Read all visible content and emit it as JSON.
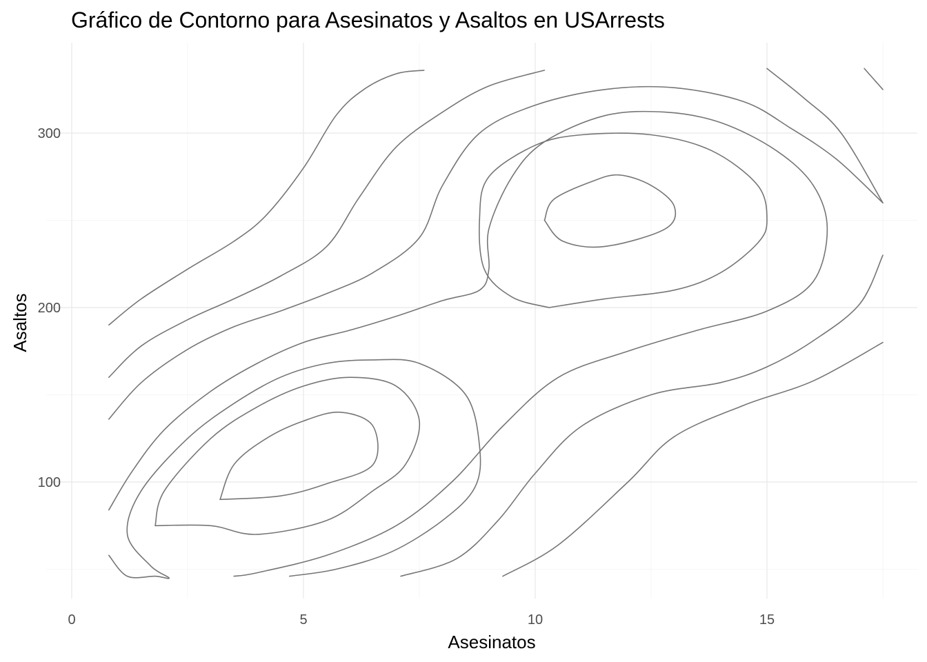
{
  "chart_data": {
    "type": "contour",
    "title": "Gráfico de Contorno para Asesinatos y Asaltos en USArrests",
    "xlabel": "Asesinatos",
    "ylabel": "Asaltos",
    "xlim": [
      0,
      18
    ],
    "ylim": [
      36,
      340
    ],
    "x_ticks": [
      0,
      5,
      10,
      15
    ],
    "x_tick_labels": [
      "0",
      "5",
      "10",
      "15"
    ],
    "y_ticks": [
      100,
      200,
      300
    ],
    "y_tick_labels": [
      "100",
      "200",
      "300"
    ],
    "x_minor": [
      2.5,
      7.5,
      12.5,
      17.5
    ],
    "y_minor": [
      50,
      150,
      250
    ],
    "grid": true,
    "legend": "none",
    "line_color": "#757575",
    "series": [
      {
        "level": 1,
        "points": [
          [
            0.8,
            190
          ],
          [
            1.5,
            205
          ],
          [
            2.5,
            222
          ],
          [
            3.5,
            238
          ],
          [
            4.2,
            253
          ],
          [
            5,
            280
          ],
          [
            5.7,
            310
          ],
          [
            6.3,
            325
          ],
          [
            7,
            334
          ],
          [
            7.6,
            336
          ]
        ]
      },
      {
        "level": 2,
        "points": [
          [
            0.8,
            160
          ],
          [
            1.5,
            178
          ],
          [
            2.5,
            193
          ],
          [
            3.5,
            205
          ],
          [
            4.5,
            218
          ],
          [
            5.5,
            235
          ],
          [
            6.2,
            263
          ],
          [
            7,
            292
          ],
          [
            8,
            312
          ],
          [
            9,
            327
          ],
          [
            10.2,
            336
          ]
        ]
      },
      {
        "level": 3,
        "points": [
          [
            0.8,
            136
          ],
          [
            1.5,
            157
          ],
          [
            2.5,
            176
          ],
          [
            3.5,
            189
          ],
          [
            4.5,
            198
          ],
          [
            5.5,
            208
          ],
          [
            6.5,
            220
          ],
          [
            7.5,
            240
          ],
          [
            8,
            270
          ],
          [
            8.8,
            300
          ],
          [
            10,
            316
          ],
          [
            11.5,
            325
          ],
          [
            13,
            326
          ],
          [
            14.5,
            318
          ],
          [
            15.5,
            303
          ],
          [
            16.5,
            285
          ],
          [
            17.5,
            260
          ]
        ]
      },
      {
        "level": 4,
        "points": [
          [
            0.8,
            84
          ],
          [
            1.3,
            106
          ],
          [
            2,
            130
          ],
          [
            3,
            152
          ],
          [
            4,
            168
          ],
          [
            5,
            180
          ],
          [
            6,
            187
          ],
          [
            7,
            195
          ],
          [
            8,
            204
          ],
          [
            8.8,
            210
          ],
          [
            9,
            222
          ],
          [
            9,
            245
          ],
          [
            9.5,
            275
          ],
          [
            10.2,
            295
          ],
          [
            11.5,
            310
          ],
          [
            12.8,
            312
          ],
          [
            14,
            306
          ],
          [
            15.2,
            290
          ],
          [
            16,
            270
          ],
          [
            16.3,
            245
          ],
          [
            16,
            215
          ],
          [
            15,
            198
          ],
          [
            13.5,
            187
          ],
          [
            12,
            175
          ],
          [
            10.5,
            160
          ],
          [
            9.3,
            132
          ],
          [
            8.2,
            100
          ],
          [
            7,
            75
          ],
          [
            5.5,
            58
          ],
          [
            4,
            48
          ],
          [
            3.5,
            46
          ]
        ]
      },
      {
        "level": 5,
        "points": [
          [
            0.8,
            58
          ],
          [
            1.2,
            46
          ],
          [
            1.8,
            46
          ],
          [
            2.1,
            45
          ],
          [
            1.7,
            52
          ],
          [
            1.2,
            70
          ],
          [
            1.5,
            95
          ],
          [
            2.5,
            125
          ],
          [
            3.5,
            145
          ],
          [
            4.5,
            160
          ],
          [
            5.5,
            168
          ],
          [
            6.5,
            170
          ],
          [
            7.5,
            168
          ],
          [
            8.5,
            150
          ],
          [
            8.8,
            120
          ],
          [
            8.7,
            97
          ],
          [
            8,
            78
          ],
          [
            6.9,
            60
          ],
          [
            5.7,
            50
          ],
          [
            4.7,
            46
          ]
        ]
      },
      {
        "level": 6,
        "points": [
          [
            10.3,
            200
          ],
          [
            11.5,
            205
          ],
          [
            13,
            210
          ],
          [
            14,
            220
          ],
          [
            14.8,
            237
          ],
          [
            15,
            250
          ],
          [
            14.8,
            270
          ],
          [
            13.8,
            290
          ],
          [
            12.5,
            299
          ],
          [
            11,
            299
          ],
          [
            10,
            293
          ],
          [
            9,
            275
          ],
          [
            8.8,
            252
          ],
          [
            8.9,
            222
          ],
          [
            9.5,
            206
          ],
          [
            10.3,
            200
          ]
        ]
      },
      {
        "level": 7,
        "points": [
          [
            1.8,
            75
          ],
          [
            2,
            95
          ],
          [
            3,
            125
          ],
          [
            4,
            143
          ],
          [
            5,
            155
          ],
          [
            6,
            160
          ],
          [
            7,
            155
          ],
          [
            7.5,
            135
          ],
          [
            7.2,
            110
          ],
          [
            6.5,
            95
          ],
          [
            5.5,
            78
          ],
          [
            4,
            70
          ],
          [
            3,
            75
          ],
          [
            1.8,
            75
          ]
        ]
      },
      {
        "level": 8,
        "points": [
          [
            3.2,
            90
          ],
          [
            3.5,
            110
          ],
          [
            4.2,
            125
          ],
          [
            5,
            135
          ],
          [
            5.8,
            140
          ],
          [
            6.5,
            132
          ],
          [
            6.5,
            110
          ],
          [
            5.5,
            99
          ],
          [
            4.5,
            92
          ],
          [
            3.2,
            90
          ]
        ]
      },
      {
        "level": 9,
        "points": [
          [
            10.2,
            250
          ],
          [
            10.4,
            262
          ],
          [
            11.2,
            272
          ],
          [
            11.8,
            276
          ],
          [
            12.5,
            270
          ],
          [
            13,
            258
          ],
          [
            12.8,
            245
          ],
          [
            11.5,
            235
          ],
          [
            10.6,
            238
          ],
          [
            10.2,
            250
          ]
        ]
      },
      {
        "level": 10,
        "points": [
          [
            7.1,
            46
          ],
          [
            8.3,
            56
          ],
          [
            9.2,
            78
          ],
          [
            10,
            105
          ],
          [
            11,
            132
          ],
          [
            12.5,
            150
          ],
          [
            14,
            157
          ],
          [
            15,
            166
          ],
          [
            16,
            181
          ],
          [
            17,
            202
          ],
          [
            17.5,
            230
          ]
        ]
      },
      {
        "level": 11,
        "points": [
          [
            9.3,
            46
          ],
          [
            10.5,
            64
          ],
          [
            12,
            100
          ],
          [
            13,
            126
          ],
          [
            14.5,
            144
          ],
          [
            16,
            158
          ],
          [
            17.5,
            180
          ]
        ]
      },
      {
        "level": 12,
        "points": [
          [
            15,
            337
          ],
          [
            15.8,
            320
          ],
          [
            16.6,
            300
          ],
          [
            17.5,
            260
          ]
        ]
      },
      {
        "level": 13,
        "points": [
          [
            17.1,
            337
          ],
          [
            17.5,
            325
          ]
        ]
      }
    ]
  }
}
